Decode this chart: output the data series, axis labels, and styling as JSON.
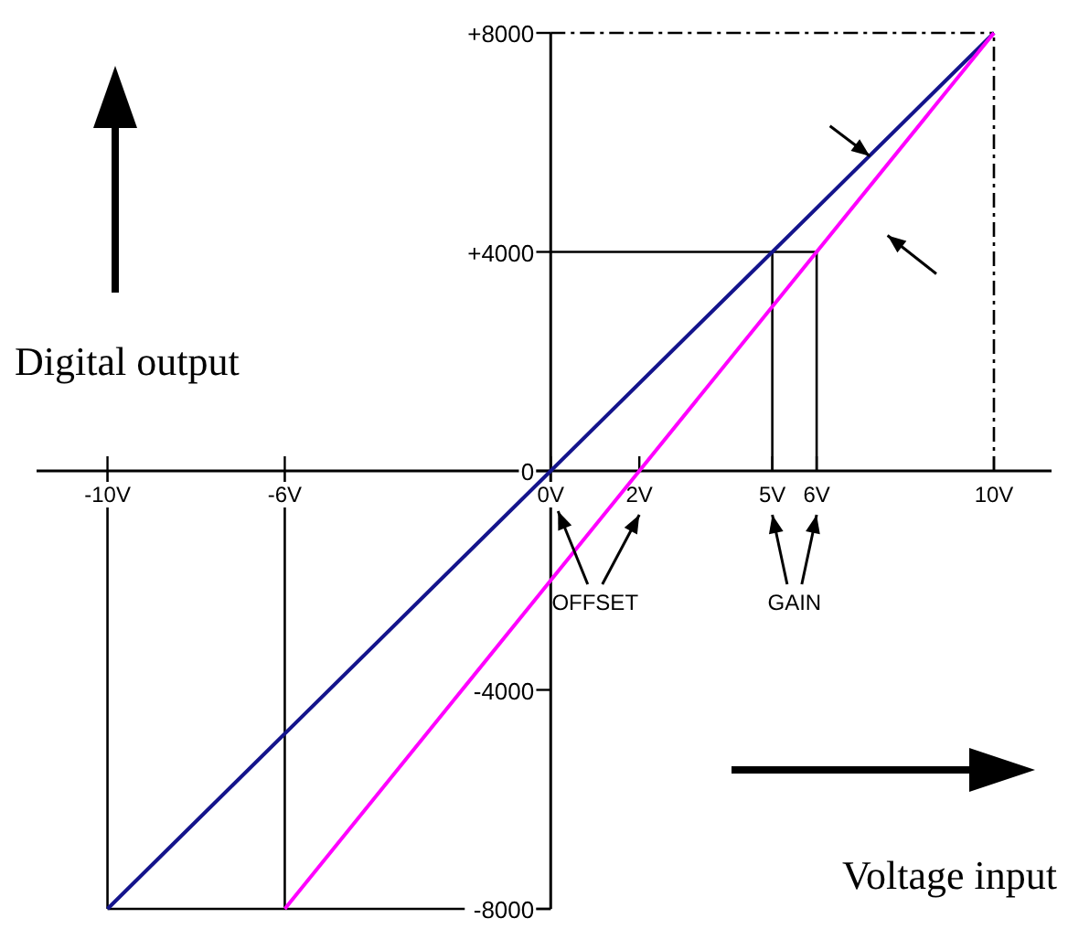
{
  "chart_data": {
    "type": "line",
    "xlabel": "Voltage input",
    "ylabel": "Digital output",
    "series": [
      {
        "color": "#14148c",
        "x": [
          -10,
          0,
          5,
          10
        ],
        "values": [
          -8000,
          0,
          4000,
          8000
        ]
      },
      {
        "color": "#ff00ff",
        "x": [
          -6,
          0,
          2,
          6,
          10
        ],
        "values": [
          -8000,
          -2000,
          0,
          4000,
          8000
        ]
      }
    ],
    "xlim": [
      -11.6,
      11.3
    ],
    "ylim": [
      -8000,
      8000
    ],
    "xticks": [
      {
        "value": -10,
        "label": "-10V"
      },
      {
        "value": -6,
        "label": "-6V"
      },
      {
        "value": 0,
        "label": "0V"
      },
      {
        "value": 2,
        "label": "2V"
      },
      {
        "value": 5,
        "label": "5V"
      },
      {
        "value": 6,
        "label": "6V"
      },
      {
        "value": 10,
        "label": "10V"
      }
    ],
    "yticks": [
      {
        "value": 8000,
        "label": "+8000"
      },
      {
        "value": 4000,
        "label": "+4000"
      },
      0,
      -4000,
      -8000
    ],
    "ref_lines": [
      {
        "axis": "x",
        "value": -10,
        "color": "#000000"
      },
      {
        "axis": "x",
        "value": -6,
        "color": "#000000"
      },
      {
        "axis": "x",
        "value": 5,
        "color": "#000000"
      },
      {
        "axis": "x",
        "value": 6,
        "color": "#000000"
      },
      {
        "axis": "x",
        "value": 10,
        "color": "#000000",
        "line_style": "dashed"
      },
      {
        "axis": "y",
        "value": 8000,
        "color": "#000000",
        "line_style": "dashed"
      },
      {
        "axis": "y",
        "value": 4000,
        "color": "#000000"
      },
      {
        "axis": "y",
        "value": -8000,
        "color": "#000000"
      }
    ],
    "annotations": [
      "OFFSET",
      "GAIN"
    ]
  }
}
